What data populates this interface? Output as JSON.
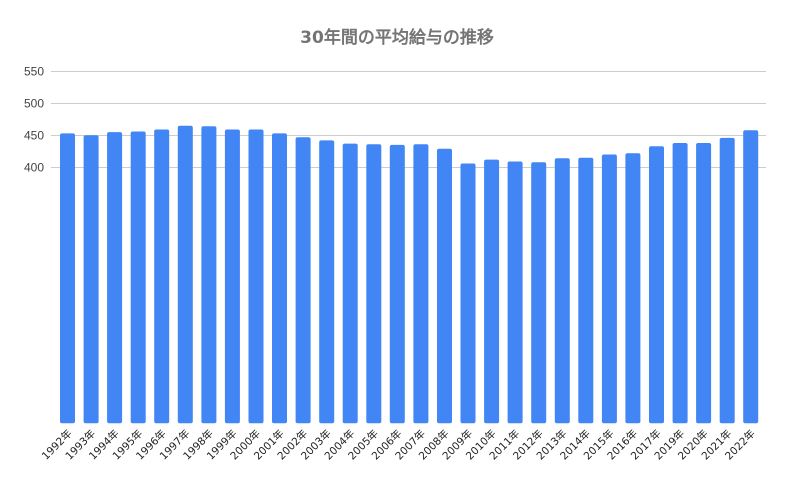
{
  "chart_data": {
    "type": "bar",
    "title": "30年間の平均給与の推移",
    "xlabel": "",
    "ylabel": "",
    "categories": [
      "1992年",
      "1993年",
      "1994年",
      "1995年",
      "1996年",
      "1997年",
      "1998年",
      "1999年",
      "2000年",
      "2001年",
      "2002年",
      "2003年",
      "2004年",
      "2005年",
      "2006年",
      "2007年",
      "2008年",
      "2009年",
      "2010年",
      "2011年",
      "2012年",
      "2013年",
      "2014年",
      "2015年",
      "2016年",
      "2017年",
      "2019年",
      "2020年",
      "2021年",
      "2022年"
    ],
    "series": [
      {
        "name": "平均給与",
        "color": "#4285f4",
        "values": [
          453,
          450,
          455,
          456,
          459,
          465,
          464,
          459,
          459,
          453,
          447,
          442,
          437,
          436,
          435,
          436,
          429,
          406,
          412,
          409,
          408,
          414,
          415,
          420,
          422,
          433,
          438,
          438,
          446,
          458
        ]
      }
    ],
    "y_ticks": [
      400,
      450,
      500,
      550
    ],
    "ylim": [
      0,
      550
    ],
    "grid": true,
    "legend": "none"
  }
}
